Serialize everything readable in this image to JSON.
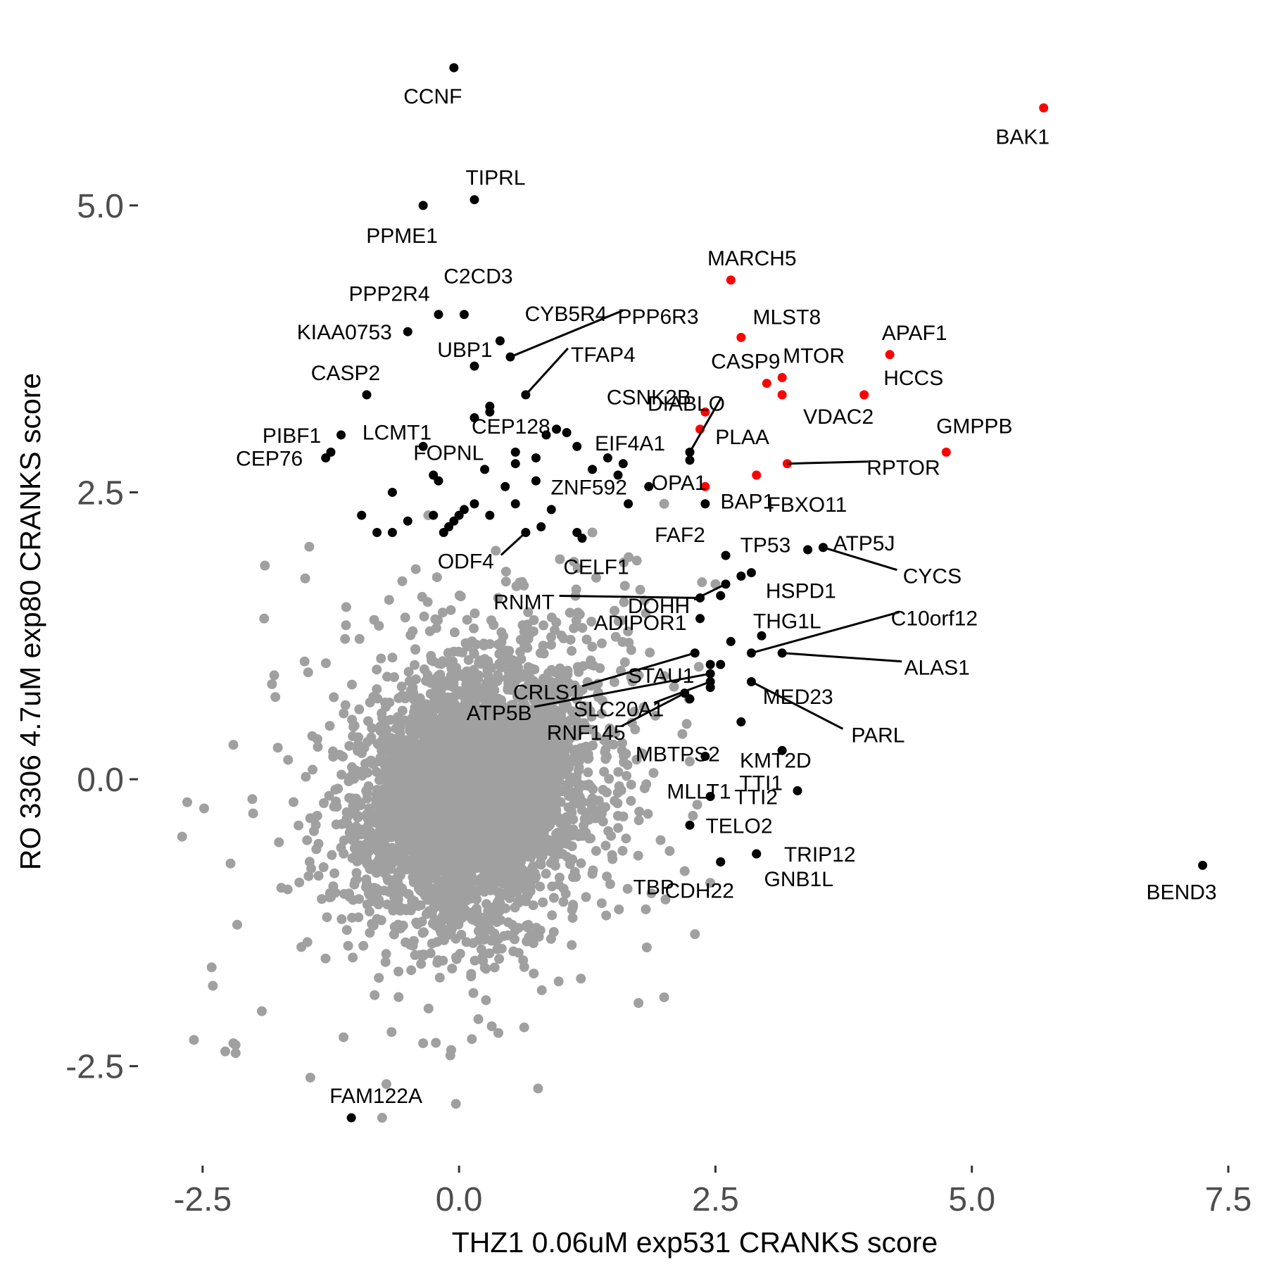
{
  "chart_data": {
    "type": "scatter",
    "xlabel": "THZ1 0.06uM exp531 CRANKS score",
    "ylabel": "RO 3306 4.7uM exp80 CRANKS score",
    "xlim": [
      -3.0,
      7.5
    ],
    "ylim": [
      -3.33,
      6.33
    ],
    "x_ticks": [
      -2.5,
      0.0,
      2.5,
      5.0,
      7.5
    ],
    "x_tick_labels": [
      "-2.5",
      "0.0",
      "2.5",
      "5.0",
      "7.5"
    ],
    "y_ticks": [
      -2.5,
      0.0,
      2.5,
      5.0
    ],
    "y_tick_labels": [
      "-2.5",
      "0.0",
      "2.5",
      "5.0"
    ],
    "grid": false,
    "colors": {
      "background": "#cloud",
      "highlight": "#ff0000",
      "labeled": "#000000",
      "axis_text": "#4d4d4d"
    },
    "background_cloud": {
      "approx_count": 18000,
      "center": [
        0.15,
        -0.1
      ],
      "sd": [
        0.55,
        0.55
      ],
      "correlation": 0.2,
      "outliers": [
        [
          -2.7,
          -0.5
        ],
        [
          -2.65,
          -0.2
        ],
        [
          -2.4,
          -1.8
        ],
        [
          -2.2,
          -2.3
        ],
        [
          -1.45,
          -2.6
        ],
        [
          -0.75,
          -2.95
        ],
        [
          -1.5,
          1.75
        ],
        [
          -1.1,
          1.5
        ],
        [
          -0.35,
          -2.3
        ],
        [
          2.3,
          -1.35
        ],
        [
          2.0,
          -1.9
        ],
        [
          1.75,
          -1.95
        ],
        [
          2.0,
          2.4
        ],
        [
          1.3,
          2.15
        ],
        [
          2.5,
          1.7
        ],
        [
          2.0,
          0.9
        ],
        [
          2.2,
          -0.8
        ],
        [
          -0.3,
          2.3
        ],
        [
          -1.9,
          1.4
        ],
        [
          -2.2,
          0.3
        ]
      ]
    },
    "labeled_points": [
      {
        "label": "CCNF",
        "x": -0.05,
        "y": 6.2,
        "color": "black"
      },
      {
        "label": "BAK1",
        "x": 5.7,
        "y": 5.85,
        "color": "red"
      },
      {
        "label": "TIPRL",
        "x": 0.15,
        "y": 5.05,
        "color": "black"
      },
      {
        "label": "PPME1",
        "x": -0.35,
        "y": 5.0,
        "color": "black"
      },
      {
        "label": "MARCH5",
        "x": 2.65,
        "y": 4.35,
        "color": "red"
      },
      {
        "label": "C2CD3",
        "x": 0.05,
        "y": 4.05,
        "color": "black"
      },
      {
        "label": "PPP2R4",
        "x": -0.2,
        "y": 4.05,
        "color": "black"
      },
      {
        "label": "KIAA0753",
        "x": -0.5,
        "y": 3.9,
        "color": "black"
      },
      {
        "label": "UBP1",
        "x": 0.4,
        "y": 3.82,
        "color": "black"
      },
      {
        "label": "PPP6R3",
        "x": 0.5,
        "y": 3.68,
        "color": "black"
      },
      {
        "label": "CYB5R4",
        "x": 0.15,
        "y": 3.6,
        "color": "black"
      },
      {
        "label": "MLST8",
        "x": 2.75,
        "y": 3.85,
        "color": "red"
      },
      {
        "label": "APAF1",
        "x": 4.2,
        "y": 3.7,
        "color": "red"
      },
      {
        "label": "TFAP4",
        "x": 0.65,
        "y": 3.35,
        "color": "black"
      },
      {
        "label": "CEP128",
        "x": 0.3,
        "y": 3.25,
        "color": "black"
      },
      {
        "label": "CASP2",
        "x": -0.9,
        "y": 3.35,
        "color": "black"
      },
      {
        "label": "CASP9",
        "x": 3.0,
        "y": 3.45,
        "color": "red"
      },
      {
        "label": "MTOR",
        "x": 3.15,
        "y": 3.5,
        "color": "red"
      },
      {
        "label": "HCCS",
        "x": 3.95,
        "y": 3.35,
        "color": "red"
      },
      {
        "label": "VDAC2",
        "x": 3.15,
        "y": 3.35,
        "color": "red"
      },
      {
        "label": "DIABLO",
        "x": 2.25,
        "y": 2.85,
        "color": "black"
      },
      {
        "label": "CSNK2B",
        "x": 2.4,
        "y": 3.2,
        "color": "red"
      },
      {
        "label": "PLAA",
        "x": 2.35,
        "y": 3.05,
        "color": "red"
      },
      {
        "label": "LCMT1",
        "x": 0.15,
        "y": 3.15,
        "color": "black"
      },
      {
        "label": "PIBF1",
        "x": -1.15,
        "y": 3.0,
        "color": "black"
      },
      {
        "label": "EIF4A1",
        "x": 2.25,
        "y": 2.78,
        "color": "black"
      },
      {
        "label": "GMPPB",
        "x": 4.75,
        "y": 2.85,
        "color": "red"
      },
      {
        "label": "FOPNL",
        "x": 0.55,
        "y": 2.85,
        "color": "black"
      },
      {
        "label": "RPTOR",
        "x": 3.2,
        "y": 2.75,
        "color": "red"
      },
      {
        "label": "CEP76",
        "x": -1.3,
        "y": 2.8,
        "color": "black"
      },
      {
        "label": "OPA1",
        "x": 2.9,
        "y": 2.65,
        "color": "red"
      },
      {
        "label": "BAP1",
        "x": 2.4,
        "y": 2.55,
        "color": "red"
      },
      {
        "label": "FBXO11",
        "x": 2.4,
        "y": 2.4,
        "color": "black"
      },
      {
        "label": "ZNF592",
        "x": 1.85,
        "y": 2.55,
        "color": "black"
      },
      {
        "label": "ODF4",
        "x": 0.65,
        "y": 2.15,
        "color": "black"
      },
      {
        "label": "CELF1",
        "x": 1.2,
        "y": 2.1,
        "color": "black"
      },
      {
        "label": "FAF2",
        "x": 2.6,
        "y": 1.95,
        "color": "black"
      },
      {
        "label": "TP53",
        "x": 2.85,
        "y": 1.8,
        "color": "black"
      },
      {
        "label": "ATP5J",
        "x": 3.4,
        "y": 2.0,
        "color": "black"
      },
      {
        "label": "CYCS",
        "x": 3.55,
        "y": 2.02,
        "color": "black"
      },
      {
        "label": "DOHH",
        "x": 2.6,
        "y": 1.7,
        "color": "black"
      },
      {
        "label": "HSPD1",
        "x": 2.75,
        "y": 1.77,
        "color": "black"
      },
      {
        "label": "RNMT",
        "x": 2.35,
        "y": 1.58,
        "color": "black"
      },
      {
        "label": "ADIPOR1",
        "x": 2.35,
        "y": 1.4,
        "color": "black"
      },
      {
        "label": "THG1L",
        "x": 2.65,
        "y": 1.2,
        "color": "black"
      },
      {
        "label": "C10orf12",
        "x": 2.85,
        "y": 1.1,
        "color": "black"
      },
      {
        "label": "CRLS1",
        "x": 2.3,
        "y": 1.1,
        "color": "black"
      },
      {
        "label": "STAU1",
        "x": 2.45,
        "y": 1.0,
        "color": "black"
      },
      {
        "label": "ALAS1",
        "x": 3.15,
        "y": 1.1,
        "color": "black"
      },
      {
        "label": "MED23",
        "x": 2.55,
        "y": 1.0,
        "color": "black"
      },
      {
        "label": "ATP5B",
        "x": 2.45,
        "y": 0.92,
        "color": "black"
      },
      {
        "label": "SLC20A1",
        "x": 2.45,
        "y": 0.85,
        "color": "black"
      },
      {
        "label": "PARL",
        "x": 2.85,
        "y": 0.85,
        "color": "black"
      },
      {
        "label": "RNF145",
        "x": 2.2,
        "y": 0.75,
        "color": "black"
      },
      {
        "label": "MBTPS2",
        "x": 2.75,
        "y": 0.5,
        "color": "black"
      },
      {
        "label": "TTI1",
        "x": 3.15,
        "y": 0.25,
        "color": "black"
      },
      {
        "label": "KMT2D",
        "x": 2.4,
        "y": 0.2,
        "color": "black"
      },
      {
        "label": "TTI2",
        "x": 2.45,
        "y": -0.15,
        "color": "black"
      },
      {
        "label": "MLLT1",
        "x": 3.3,
        "y": -0.1,
        "color": "black"
      },
      {
        "label": "TELO2",
        "x": 2.25,
        "y": -0.4,
        "color": "black"
      },
      {
        "label": "TRIP12",
        "x": 2.9,
        "y": -0.65,
        "color": "black"
      },
      {
        "label": "TBP",
        "x": 2.55,
        "y": -0.72,
        "color": "black"
      },
      {
        "label": "GNB1L",
        "x": 2.9,
        "y": -0.65,
        "color": "black"
      },
      {
        "label": "CDH22",
        "x": 2.55,
        "y": -0.72,
        "color": "black"
      },
      {
        "label": "BEND3",
        "x": 7.25,
        "y": -0.75,
        "color": "black"
      },
      {
        "label": "FAM122A",
        "x": -1.05,
        "y": -2.95,
        "color": "black"
      }
    ],
    "unlabeled_points": [
      {
        "x": 0.3,
        "y": 3.2,
        "color": "black"
      },
      {
        "x": -0.35,
        "y": 2.9,
        "color": "black"
      },
      {
        "x": 0.85,
        "y": 3.0,
        "color": "black"
      },
      {
        "x": 0.95,
        "y": 3.05,
        "color": "black"
      },
      {
        "x": 1.05,
        "y": 3.02,
        "color": "black"
      },
      {
        "x": 1.15,
        "y": 2.9,
        "color": "black"
      },
      {
        "x": 0.75,
        "y": 2.8,
        "color": "black"
      },
      {
        "x": 0.55,
        "y": 2.75,
        "color": "black"
      },
      {
        "x": 0.25,
        "y": 2.7,
        "color": "black"
      },
      {
        "x": 0.45,
        "y": 2.55,
        "color": "black"
      },
      {
        "x": 0.75,
        "y": 2.6,
        "color": "black"
      },
      {
        "x": 1.3,
        "y": 2.7,
        "color": "black"
      },
      {
        "x": 1.45,
        "y": 2.8,
        "color": "black"
      },
      {
        "x": 1.6,
        "y": 2.75,
        "color": "black"
      },
      {
        "x": 1.55,
        "y": 2.65,
        "color": "black"
      },
      {
        "x": -0.2,
        "y": 2.6,
        "color": "black"
      },
      {
        "x": -0.25,
        "y": 2.65,
        "color": "black"
      },
      {
        "x": -0.65,
        "y": 2.5,
        "color": "black"
      },
      {
        "x": 0.55,
        "y": 2.4,
        "color": "black"
      },
      {
        "x": 0.15,
        "y": 2.4,
        "color": "black"
      },
      {
        "x": 0.3,
        "y": 2.3,
        "color": "black"
      },
      {
        "x": 0.05,
        "y": 2.35,
        "color": "black"
      },
      {
        "x": 0.0,
        "y": 2.3,
        "color": "black"
      },
      {
        "x": -0.05,
        "y": 2.25,
        "color": "black"
      },
      {
        "x": -0.1,
        "y": 2.2,
        "color": "black"
      },
      {
        "x": -0.15,
        "y": 2.15,
        "color": "black"
      },
      {
        "x": -0.25,
        "y": 2.3,
        "color": "black"
      },
      {
        "x": -0.5,
        "y": 2.25,
        "color": "black"
      },
      {
        "x": -0.95,
        "y": 2.3,
        "color": "black"
      },
      {
        "x": -0.8,
        "y": 2.15,
        "color": "black"
      },
      {
        "x": -0.65,
        "y": 2.15,
        "color": "black"
      },
      {
        "x": 0.8,
        "y": 2.2,
        "color": "black"
      },
      {
        "x": 1.15,
        "y": 2.15,
        "color": "black"
      },
      {
        "x": 1.65,
        "y": 2.4,
        "color": "black"
      },
      {
        "x": 0.9,
        "y": 2.35,
        "color": "black"
      },
      {
        "x": -1.25,
        "y": 2.85,
        "color": "black"
      },
      {
        "x": 2.55,
        "y": 1.6,
        "color": "black"
      },
      {
        "x": 2.95,
        "y": 1.25,
        "color": "black"
      },
      {
        "x": 2.45,
        "y": 0.8,
        "color": "black"
      },
      {
        "x": 2.25,
        "y": 0.7,
        "color": "black"
      }
    ]
  }
}
